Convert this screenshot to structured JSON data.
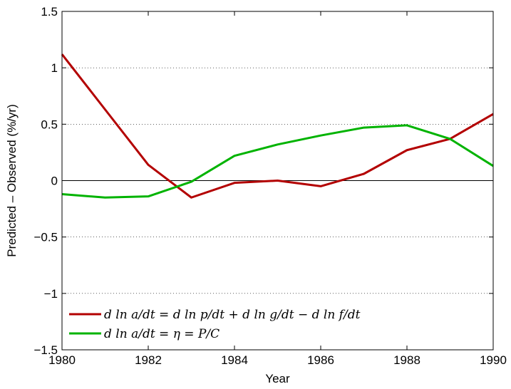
{
  "chart_data": {
    "type": "line",
    "xlabel": "Year",
    "ylabel": "Predicted – Observed (%/yr)",
    "xlim": [
      1980,
      1990
    ],
    "ylim": [
      -1.5,
      1.5
    ],
    "x_ticks": [
      1980,
      1982,
      1984,
      1986,
      1988,
      1990
    ],
    "y_ticks": [
      -1.5,
      -1,
      -0.5,
      0,
      0.5,
      1,
      1.5
    ],
    "x_tick_labels": [
      "1980",
      "1982",
      "1984",
      "1986",
      "1988",
      "1990"
    ],
    "y_tick_labels": [
      "−1.5",
      "−1",
      "−0.5",
      "0",
      "0.5",
      "1",
      "1.5"
    ],
    "grid": "horizontal dotted",
    "zero_line": true,
    "legend_position": "bottom-left",
    "x": [
      1980,
      1981,
      1982,
      1983,
      1984,
      1985,
      1986,
      1987,
      1988,
      1989,
      1990
    ],
    "series": [
      {
        "name": "d ln a/dt = d ln p/dt + d ln g/dt − d ln f/dt",
        "color": "#b30000",
        "values": [
          1.12,
          0.63,
          0.14,
          -0.15,
          -0.02,
          0.0,
          -0.05,
          0.06,
          0.27,
          0.37,
          0.59
        ]
      },
      {
        "name": "d ln a/dt = η = P/C",
        "color": "#00b300",
        "values": [
          -0.12,
          -0.15,
          -0.14,
          -0.01,
          0.22,
          0.32,
          0.4,
          0.47,
          0.49,
          0.37,
          0.13
        ]
      }
    ]
  }
}
